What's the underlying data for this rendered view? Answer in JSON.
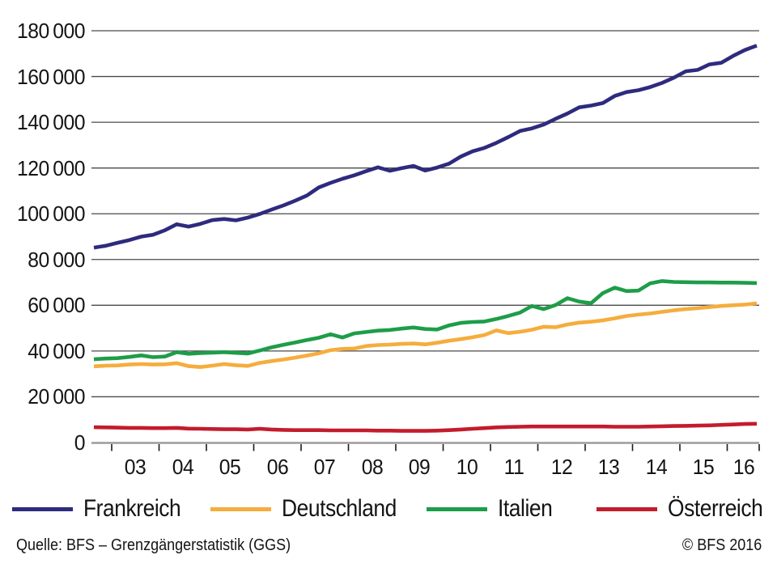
{
  "chart_data": {
    "type": "line",
    "grid": true,
    "legend_position": "bottom",
    "y_axis": {
      "min": 0,
      "max": 180000,
      "step": 20000,
      "tick_labels": [
        "0",
        "20 000",
        "40 000",
        "60 000",
        "80 000",
        "100 000",
        "120 000",
        "140 000",
        "160 000",
        "180 000"
      ]
    },
    "x_tick_labels": [
      "03",
      "04",
      "05",
      "06",
      "07",
      "08",
      "09",
      "10",
      "11",
      "12",
      "13",
      "14",
      "15",
      "16"
    ],
    "quarters": [
      "2002-Q3",
      "2002-Q4",
      "2003-Q1",
      "2003-Q2",
      "2003-Q3",
      "2003-Q4",
      "2004-Q1",
      "2004-Q2",
      "2004-Q3",
      "2004-Q4",
      "2005-Q1",
      "2005-Q2",
      "2005-Q3",
      "2005-Q4",
      "2006-Q1",
      "2006-Q2",
      "2006-Q3",
      "2006-Q4",
      "2007-Q1",
      "2007-Q2",
      "2007-Q3",
      "2007-Q4",
      "2008-Q1",
      "2008-Q2",
      "2008-Q3",
      "2008-Q4",
      "2009-Q1",
      "2009-Q2",
      "2009-Q3",
      "2009-Q4",
      "2010-Q1",
      "2010-Q2",
      "2010-Q3",
      "2010-Q4",
      "2011-Q1",
      "2011-Q2",
      "2011-Q3",
      "2011-Q4",
      "2012-Q1",
      "2012-Q2",
      "2012-Q3",
      "2012-Q4",
      "2013-Q1",
      "2013-Q2",
      "2013-Q3",
      "2013-Q4",
      "2014-Q1",
      "2014-Q2",
      "2014-Q3",
      "2014-Q4",
      "2015-Q1",
      "2015-Q2",
      "2015-Q3",
      "2015-Q4",
      "2016-Q1",
      "2016-Q2",
      "2016-Q3"
    ],
    "series": [
      {
        "name": "Frankreich",
        "color": "#2e2b7e",
        "values": [
          85200,
          86000,
          87300,
          88500,
          90000,
          90800,
          92800,
          95400,
          94400,
          95600,
          97200,
          97700,
          97100,
          98300,
          99900,
          101800,
          103600,
          105700,
          108000,
          111500,
          113500,
          115300,
          116800,
          118600,
          120300,
          118800,
          119900,
          120900,
          118900,
          120200,
          121900,
          125000,
          127300,
          128800,
          131000,
          133500,
          136200,
          137300,
          139000,
          141500,
          143800,
          146500,
          147300,
          148400,
          151500,
          153200,
          154000,
          155400,
          157200,
          159500,
          162300,
          162900,
          165300,
          166000,
          169000,
          171600,
          173500
        ]
      },
      {
        "name": "Deutschland",
        "color": "#f5ad3d",
        "values": [
          33300,
          33600,
          33700,
          34100,
          34300,
          34100,
          34200,
          34700,
          33400,
          33000,
          33600,
          34300,
          33800,
          33500,
          34800,
          35600,
          36300,
          37100,
          38000,
          39000,
          40400,
          40900,
          41100,
          42200,
          42600,
          42800,
          43100,
          43300,
          42900,
          43600,
          44500,
          45200,
          46000,
          47000,
          49000,
          47800,
          48400,
          49300,
          50600,
          50400,
          51600,
          52400,
          52800,
          53400,
          54300,
          55300,
          55900,
          56400,
          57100,
          57800,
          58300,
          58700,
          59200,
          59700,
          60000,
          60300,
          60800
        ]
      },
      {
        "name": "Italien",
        "color": "#1e9d49",
        "values": [
          36400,
          36700,
          36900,
          37400,
          38100,
          37300,
          37600,
          39500,
          38800,
          39100,
          39300,
          39500,
          39200,
          38900,
          40200,
          41600,
          42700,
          43700,
          44800,
          45800,
          47300,
          45900,
          47700,
          48300,
          48900,
          49200,
          49800,
          50300,
          49600,
          49400,
          51200,
          52300,
          52700,
          52900,
          54000,
          55300,
          56800,
          59700,
          58300,
          60100,
          63100,
          61600,
          60900,
          65300,
          67700,
          66200,
          66400,
          69600,
          70600,
          70200,
          70100,
          70000,
          70000,
          69900,
          69900,
          69800,
          69700
        ]
      },
      {
        "name": "Österreich",
        "color": "#c31c2d",
        "values": [
          6700,
          6600,
          6500,
          6400,
          6400,
          6300,
          6300,
          6400,
          6100,
          6000,
          5900,
          5800,
          5800,
          5700,
          6000,
          5700,
          5500,
          5400,
          5400,
          5400,
          5300,
          5300,
          5300,
          5300,
          5200,
          5200,
          5100,
          5100,
          5100,
          5200,
          5400,
          5700,
          6000,
          6300,
          6600,
          6800,
          6900,
          7000,
          7000,
          7000,
          7000,
          7000,
          7000,
          7000,
          6900,
          6900,
          6900,
          7000,
          7100,
          7200,
          7300,
          7400,
          7500,
          7700,
          7900,
          8100,
          8200
        ]
      }
    ],
    "style": {
      "grid_color": "#4a4a4a",
      "axis_color": "#9c9c9c",
      "tick_color": "#1a1a1a",
      "line_width": 4.6
    }
  },
  "footer": {
    "source": "Quelle: BFS – Grenzgängerstatistik (GGS)",
    "copyright": "© BFS 2016"
  }
}
